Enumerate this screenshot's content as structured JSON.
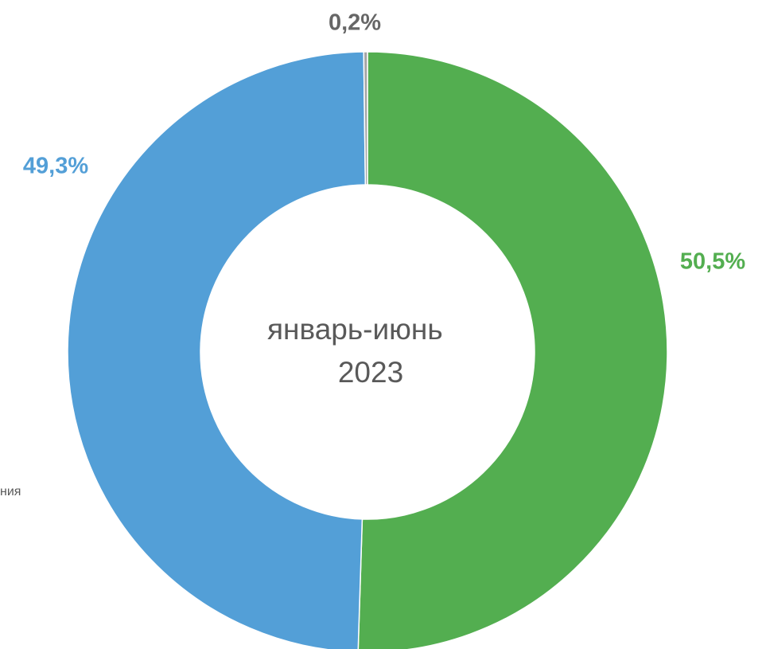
{
  "chart_data": {
    "type": "donut",
    "categories": [
      null,
      null,
      null
    ],
    "values": [
      50.5,
      49.3,
      0.2
    ],
    "value_labels": [
      "50,5%",
      "49,3%",
      "0,2%"
    ],
    "colors": [
      "#53ae50",
      "#539fd7",
      "#a5a5a5"
    ],
    "center_label": [
      "январь-июнь",
      "2023"
    ],
    "annotations": [
      "ния"
    ]
  }
}
